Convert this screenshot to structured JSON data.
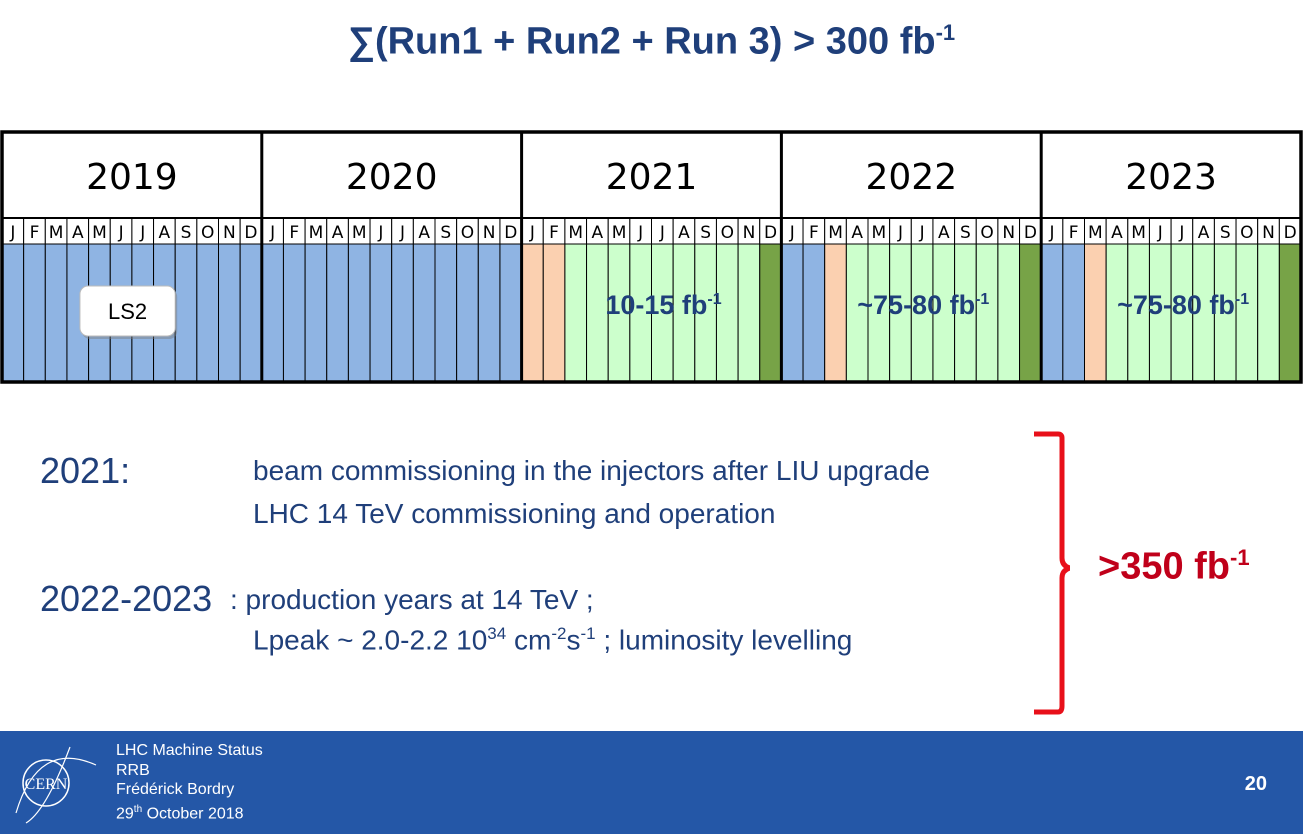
{
  "title": {
    "main": "∑(Run1 + Run2 + Run 3) > 300 fb",
    "sup": "-1"
  },
  "colors": {
    "shutdown": "#8fb4e3",
    "recommissioning": "#fbd0b0",
    "physics": "#ccffcc",
    "year_end": "#77a347",
    "title_text": "#1f3f7a",
    "total_text": "#c0001a",
    "footer_bg": "#2457a7"
  },
  "schedule": {
    "years": [
      "2019",
      "2020",
      "2021",
      "2022",
      "2023"
    ],
    "months": [
      "J",
      "F",
      "M",
      "A",
      "M",
      "J",
      "J",
      "A",
      "S",
      "O",
      "N",
      "D"
    ],
    "ls2_label": "LS2",
    "month_status": [
      [
        "shutdown",
        "shutdown",
        "shutdown",
        "shutdown",
        "shutdown",
        "shutdown",
        "shutdown",
        "shutdown",
        "shutdown",
        "shutdown",
        "shutdown",
        "shutdown"
      ],
      [
        "shutdown",
        "shutdown",
        "shutdown",
        "shutdown",
        "shutdown",
        "shutdown",
        "shutdown",
        "shutdown",
        "shutdown",
        "shutdown",
        "shutdown",
        "shutdown"
      ],
      [
        "recommissioning",
        "recommissioning",
        "physics",
        "physics",
        "physics",
        "physics",
        "physics",
        "physics",
        "physics",
        "physics",
        "physics",
        "year_end"
      ],
      [
        "shutdown",
        "shutdown",
        "recommissioning",
        "physics",
        "physics",
        "physics",
        "physics",
        "physics",
        "physics",
        "physics",
        "physics",
        "year_end"
      ],
      [
        "shutdown",
        "shutdown",
        "recommissioning",
        "physics",
        "physics",
        "physics",
        "physics",
        "physics",
        "physics",
        "physics",
        "physics",
        "year_end"
      ]
    ],
    "year_lumi": [
      "",
      "",
      "10-15 fb",
      "~75-80 fb",
      "~75-80 fb"
    ],
    "lumi_sup": "-1"
  },
  "notes": {
    "y2021_label": "2021:",
    "y2021_line1": "beam commissioning in the injectors after LIU upgrade",
    "y2021_line2": "LHC 14 TeV commissioning and operation",
    "y2223_label": "2022-2023",
    "y2223_line1": ": production years at 14 TeV ;",
    "y2223_line2": {
      "a": "Lpeak ~ 2.0-2.2 10",
      "a_sup": "34",
      "b": " cm",
      "b_sup": "-2",
      "c": "s",
      "c_sup": "-1",
      "d": " ; luminosity levelling"
    }
  },
  "total": {
    "text": ">350 fb",
    "sup": "-1"
  },
  "footer": {
    "line1": "LHC Machine Status",
    "line2": "RRB",
    "line3": "Frédérick Bordry",
    "line4_day": "29",
    "line4_sup": "th",
    "line4_rest": " October 2018",
    "page": "20",
    "logo_text": "CERN"
  }
}
